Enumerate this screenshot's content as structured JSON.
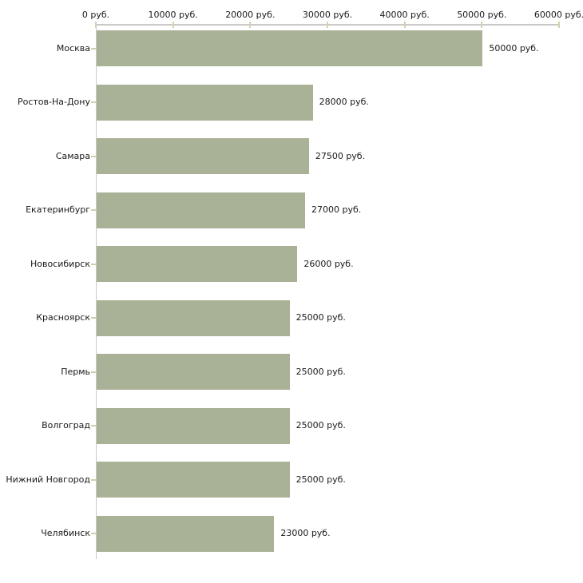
{
  "chart_data": {
    "type": "bar",
    "orientation": "horizontal",
    "title": "",
    "unit": "руб.",
    "categories": [
      "Москва",
      "Ростов-На-Дону",
      "Самара",
      "Екатеринбург",
      "Новосибирск",
      "Красноярск",
      "Пермь",
      "Волгоград",
      "Нижний Новгород",
      "Челябинск"
    ],
    "values": [
      50000,
      28000,
      27500,
      27000,
      26000,
      25000,
      25000,
      25000,
      25000,
      23000
    ],
    "value_labels": [
      "50000 руб.",
      "28000 руб.",
      "27500 руб.",
      "27000 руб.",
      "26000 руб.",
      "25000 руб.",
      "25000 руб.",
      "25000 руб.",
      "25000 руб.",
      "23000 руб."
    ],
    "xlabel": "",
    "ylabel": "",
    "xlim": [
      0,
      60000
    ],
    "x_ticks": [
      0,
      10000,
      20000,
      30000,
      40000,
      50000,
      60000
    ],
    "x_tick_labels": [
      "0 руб.",
      "10000 руб.",
      "20000 руб.",
      "30000 руб.",
      "40000 руб.",
      "50000 руб.",
      "60000 руб."
    ],
    "axis_position": "top",
    "grid": false,
    "legend": false,
    "colors": {
      "bar": "#a9b296",
      "axis_line": "#c9c9c9",
      "x_tick": "#d2d2ae",
      "category_tick": "#cfcfad",
      "text": "#1a1a1a",
      "background": "#ffffff"
    }
  }
}
